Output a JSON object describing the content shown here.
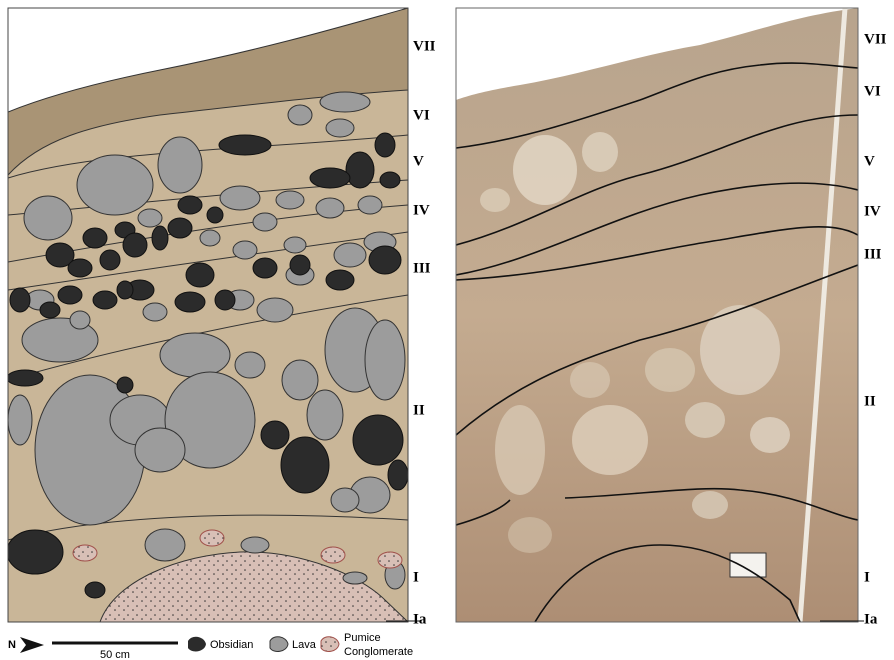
{
  "drawing_labels": [
    "VII",
    "VI",
    "V",
    "IV",
    "III",
    "II",
    "I",
    "Ia"
  ],
  "photo_labels": [
    "VII",
    "VI",
    "V",
    "IV",
    "III",
    "II",
    "I",
    "Ia"
  ],
  "legend": {
    "north": "N",
    "scale": "50 cm",
    "obsidian": "Obsidian",
    "lava": "Lava",
    "pumice_line1": "Pumice",
    "pumice_line2": "Conglomerate"
  }
}
